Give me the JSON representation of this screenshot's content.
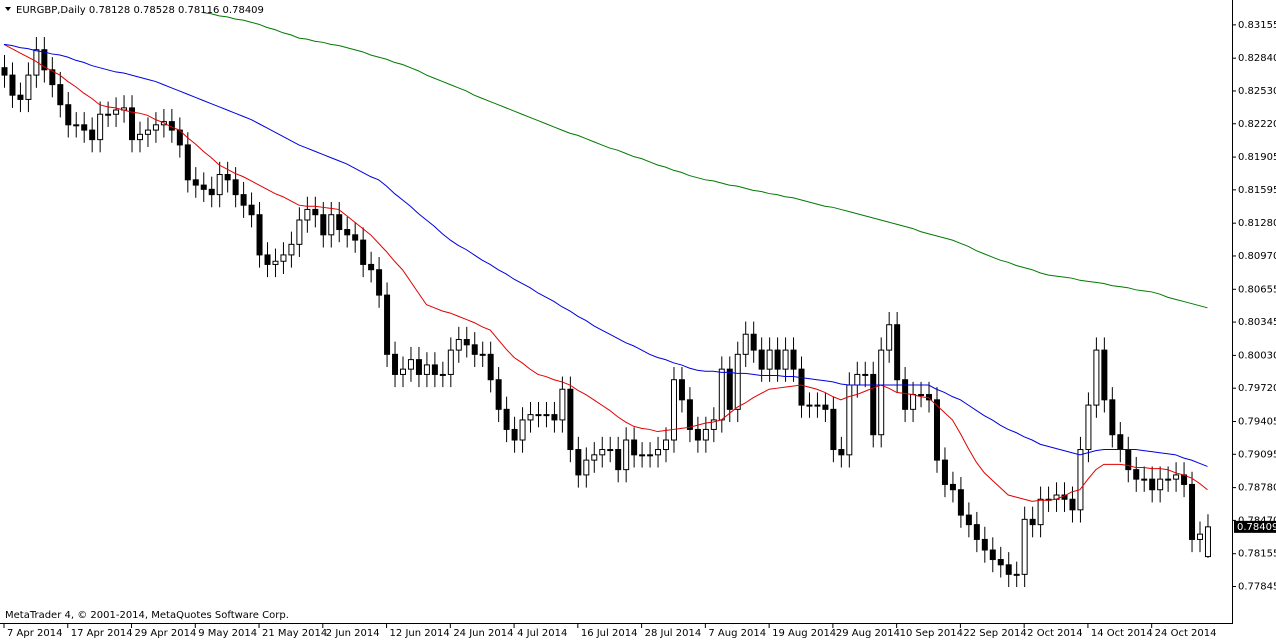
{
  "chart_data": {
    "type": "candlestick",
    "title": "EURGBP,Daily",
    "footer": "MetaTrader 4, © 2001-2014, MetaQuotes Software Corp.",
    "up_color": "#ffffff",
    "down_color": "#000000",
    "edge_color": "#000000",
    "categories": [
      "7 Apr 2014",
      null,
      null,
      null,
      null,
      null,
      null,
      null,
      "17 Apr 2014",
      null,
      null,
      null,
      null,
      null,
      null,
      null,
      "29 Apr 2014",
      null,
      null,
      null,
      null,
      null,
      null,
      null,
      "9 May 2014",
      null,
      null,
      null,
      null,
      null,
      null,
      null,
      "21 May 2014",
      null,
      null,
      null,
      null,
      null,
      null,
      null,
      "2 Jun 2014",
      null,
      null,
      null,
      null,
      null,
      null,
      null,
      "12 Jun 2014",
      null,
      null,
      null,
      null,
      null,
      null,
      null,
      "24 Jun 2014",
      null,
      null,
      null,
      null,
      null,
      null,
      null,
      "4 Jul 2014",
      null,
      null,
      null,
      null,
      null,
      null,
      null,
      "16 Jul 2014",
      null,
      null,
      null,
      null,
      null,
      null,
      null,
      "28 Jul 2014",
      null,
      null,
      null,
      null,
      null,
      null,
      null,
      "7 Aug 2014",
      null,
      null,
      null,
      null,
      null,
      null,
      null,
      "19 Aug 2014",
      null,
      null,
      null,
      null,
      null,
      null,
      null,
      "29 Aug 2014",
      null,
      null,
      null,
      null,
      null,
      null,
      null,
      "10 Sep 2014",
      null,
      null,
      null,
      null,
      null,
      null,
      null,
      "22 Sep 2014",
      null,
      null,
      null,
      null,
      null,
      null,
      null,
      "2 Oct 2014",
      null,
      null,
      null,
      null,
      null,
      null,
      null,
      "14 Oct 2014",
      null,
      null,
      null,
      null,
      null,
      null,
      null,
      "24 Oct 2014",
      null,
      null,
      null,
      null,
      null,
      null,
      null
    ],
    "open": [
      0.8275,
      0.8268,
      0.8249,
      0.8245,
      0.8268,
      0.8292,
      0.8273,
      0.8259,
      0.824,
      0.8221,
      0.8221,
      0.8216,
      0.8207,
      0.8231,
      0.8231,
      0.8235,
      0.8237,
      0.8207,
      0.8212,
      0.8216,
      0.8221,
      0.8224,
      0.8216,
      0.8202,
      0.8169,
      0.8164,
      0.816,
      0.8155,
      0.8174,
      0.8169,
      0.8155,
      0.8145,
      0.8136,
      0.8098,
      0.8089,
      0.8092,
      0.8098,
      0.8108,
      0.8131,
      0.8141,
      0.8136,
      0.8117,
      0.8136,
      0.8122,
      0.8117,
      0.8112,
      0.8089,
      0.8084,
      0.806,
      0.8004,
      0.7985,
      0.799,
      0.7999,
      0.7985,
      0.7994,
      0.7985,
      0.7985,
      0.8008,
      0.8018,
      0.8013,
      0.8004,
      0.8004,
      0.798,
      0.7952,
      0.7933,
      0.7923,
      0.7942,
      0.7947,
      0.7947,
      0.7947,
      0.7942,
      0.7971,
      0.7914,
      0.789,
      0.7904,
      0.7909,
      0.7914,
      0.7914,
      0.7895,
      0.7923,
      0.7909,
      0.7909,
      0.7909,
      0.7914,
      0.7923,
      0.798,
      0.7961,
      0.7933,
      0.7923,
      0.7933,
      0.7942,
      0.799,
      0.7952,
      0.8004,
      0.8023,
      0.8008,
      0.799,
      0.8008,
      0.799,
      0.8008,
      0.799,
      0.7956,
      0.7956,
      0.7956,
      0.7952,
      0.7914,
      0.7909,
      0.7975,
      0.7985,
      0.7985,
      0.7928,
      0.8008,
      0.8032,
      0.798,
      0.7952,
      0.7966,
      0.7966,
      0.7961,
      0.7904,
      0.7881,
      0.7876,
      0.7852,
      0.7843,
      0.7829,
      0.7819,
      0.781,
      0.7805,
      0.7796,
      0.7796,
      0.7848,
      0.7843,
      0.7867,
      0.7867,
      0.7871,
      0.7867,
      0.7857,
      0.7914,
      0.7956,
      0.8008,
      0.7961,
      0.7928,
      0.7914,
      0.7895,
      0.7886,
      0.7886,
      0.7876,
      0.7886,
      0.7886,
      0.789,
      0.7881,
      0.7829,
      0.78128
    ],
    "high": [
      0.8287,
      0.828,
      0.8261,
      0.828,
      0.8304,
      0.8304,
      0.8285,
      0.8271,
      0.8252,
      0.8233,
      0.8233,
      0.8228,
      0.8243,
      0.8243,
      0.8247,
      0.8249,
      0.8249,
      0.8224,
      0.8228,
      0.8233,
      0.8236,
      0.8236,
      0.8228,
      0.8214,
      0.8181,
      0.8176,
      0.8172,
      0.8186,
      0.8186,
      0.8181,
      0.8167,
      0.8157,
      0.8148,
      0.811,
      0.8104,
      0.811,
      0.812,
      0.8143,
      0.8153,
      0.8153,
      0.8148,
      0.8148,
      0.8148,
      0.8134,
      0.8129,
      0.8124,
      0.8101,
      0.8096,
      0.8072,
      0.8016,
      0.8002,
      0.8011,
      0.8011,
      0.8006,
      0.8006,
      0.7997,
      0.802,
      0.803,
      0.803,
      0.8025,
      0.8016,
      0.8016,
      0.7992,
      0.7964,
      0.7945,
      0.7954,
      0.7959,
      0.7959,
      0.7959,
      0.7959,
      0.7983,
      0.7983,
      0.7926,
      0.7916,
      0.7921,
      0.7926,
      0.7926,
      0.7926,
      0.7935,
      0.7935,
      0.7921,
      0.7921,
      0.7926,
      0.7935,
      0.7992,
      0.7992,
      0.7973,
      0.7945,
      0.7945,
      0.7954,
      0.8002,
      0.8002,
      0.8016,
      0.8035,
      0.8035,
      0.802,
      0.802,
      0.802,
      0.802,
      0.802,
      0.8002,
      0.7968,
      0.7968,
      0.7968,
      0.7964,
      0.7926,
      0.7987,
      0.7997,
      0.7997,
      0.7997,
      0.802,
      0.8044,
      0.8044,
      0.7992,
      0.7978,
      0.7978,
      0.7978,
      0.7973,
      0.7916,
      0.7893,
      0.7888,
      0.7864,
      0.7855,
      0.7841,
      0.7831,
      0.7822,
      0.7817,
      0.7808,
      0.786,
      0.786,
      0.7879,
      0.7879,
      0.7883,
      0.7883,
      0.7879,
      0.7926,
      0.7968,
      0.802,
      0.802,
      0.7973,
      0.794,
      0.7926,
      0.7907,
      0.7898,
      0.7898,
      0.7898,
      0.7898,
      0.7902,
      0.7902,
      0.7893,
      0.7846,
      0.78528
    ],
    "low": [
      0.8256,
      0.8237,
      0.8233,
      0.8233,
      0.8256,
      0.8261,
      0.8247,
      0.8228,
      0.8209,
      0.8209,
      0.8204,
      0.8195,
      0.8195,
      0.8219,
      0.8219,
      0.8223,
      0.8195,
      0.8195,
      0.82,
      0.8204,
      0.8209,
      0.8204,
      0.819,
      0.8157,
      0.8152,
      0.8148,
      0.8143,
      0.8143,
      0.8157,
      0.8143,
      0.8133,
      0.8124,
      0.8086,
      0.8077,
      0.8077,
      0.808,
      0.8086,
      0.8096,
      0.8119,
      0.8124,
      0.8105,
      0.8105,
      0.811,
      0.8105,
      0.81,
      0.8077,
      0.8072,
      0.8048,
      0.7992,
      0.7973,
      0.7973,
      0.7978,
      0.7973,
      0.7973,
      0.7973,
      0.7973,
      0.7973,
      0.7996,
      0.8001,
      0.7992,
      0.7992,
      0.7968,
      0.794,
      0.7921,
      0.7911,
      0.7911,
      0.793,
      0.7935,
      0.7935,
      0.793,
      0.793,
      0.7902,
      0.7878,
      0.7878,
      0.7892,
      0.7897,
      0.7902,
      0.7883,
      0.7883,
      0.7897,
      0.7897,
      0.7897,
      0.7897,
      0.7902,
      0.7911,
      0.7949,
      0.7921,
      0.7911,
      0.7911,
      0.7921,
      0.793,
      0.794,
      0.794,
      0.7992,
      0.7996,
      0.7978,
      0.7978,
      0.7978,
      0.7978,
      0.7978,
      0.7944,
      0.7944,
      0.7944,
      0.794,
      0.7902,
      0.7897,
      0.7897,
      0.7963,
      0.7973,
      0.7916,
      0.7916,
      0.7996,
      0.7968,
      0.794,
      0.794,
      0.7954,
      0.7949,
      0.7892,
      0.7869,
      0.7864,
      0.784,
      0.7831,
      0.7817,
      0.7807,
      0.7798,
      0.7793,
      0.7784,
      0.7784,
      0.7784,
      0.7831,
      0.7831,
      0.7855,
      0.7855,
      0.7855,
      0.7845,
      0.7845,
      0.7902,
      0.7944,
      0.7949,
      0.7916,
      0.7902,
      0.7883,
      0.7874,
      0.7874,
      0.7864,
      0.7864,
      0.7874,
      0.7874,
      0.7869,
      0.7817,
      0.7817,
      0.78116
    ],
    "close": [
      0.8268,
      0.8249,
      0.8245,
      0.8268,
      0.8292,
      0.8273,
      0.8259,
      0.824,
      0.8221,
      0.8221,
      0.8216,
      0.8207,
      0.8231,
      0.8231,
      0.8235,
      0.8237,
      0.8207,
      0.8212,
      0.8216,
      0.8221,
      0.8224,
      0.8216,
      0.8202,
      0.8169,
      0.8164,
      0.816,
      0.8155,
      0.8174,
      0.8169,
      0.8155,
      0.8145,
      0.8136,
      0.8098,
      0.8089,
      0.8092,
      0.8098,
      0.8108,
      0.8131,
      0.8141,
      0.8136,
      0.8117,
      0.8136,
      0.8122,
      0.8117,
      0.8112,
      0.8089,
      0.8084,
      0.806,
      0.8004,
      0.7985,
      0.799,
      0.7999,
      0.7985,
      0.7994,
      0.7985,
      0.7985,
      0.8008,
      0.8018,
      0.8013,
      0.8004,
      0.8004,
      0.798,
      0.7952,
      0.7933,
      0.7923,
      0.7942,
      0.7947,
      0.7947,
      0.7947,
      0.7942,
      0.7971,
      0.7914,
      0.789,
      0.7904,
      0.7909,
      0.7914,
      0.7914,
      0.7895,
      0.7923,
      0.7909,
      0.7909,
      0.7909,
      0.7914,
      0.7923,
      0.798,
      0.7961,
      0.7933,
      0.7923,
      0.7933,
      0.7942,
      0.799,
      0.7952,
      0.8004,
      0.8023,
      0.8008,
      0.799,
      0.8008,
      0.799,
      0.8008,
      0.799,
      0.7956,
      0.7956,
      0.7956,
      0.7952,
      0.7914,
      0.7909,
      0.7975,
      0.7985,
      0.7985,
      0.7928,
      0.8008,
      0.8032,
      0.798,
      0.7952,
      0.7966,
      0.7966,
      0.7961,
      0.7904,
      0.7881,
      0.7876,
      0.7852,
      0.7843,
      0.7829,
      0.7819,
      0.781,
      0.7805,
      0.7796,
      0.7796,
      0.7848,
      0.7843,
      0.7867,
      0.7867,
      0.7871,
      0.7867,
      0.7857,
      0.7914,
      0.7956,
      0.8008,
      0.7961,
      0.7928,
      0.7914,
      0.7895,
      0.7886,
      0.7886,
      0.7876,
      0.7886,
      0.7886,
      0.789,
      0.7881,
      0.7829,
      0.7834,
      0.78409
    ],
    "series": [
      {
        "color": "#e00000",
        "values": [
          0.8297,
          0.8293,
          0.8289,
          0.8285,
          0.8281,
          0.8276,
          0.8272,
          0.8268,
          0.8262,
          0.8257,
          0.8251,
          0.8246,
          0.824,
          0.8238,
          0.8237,
          0.8235,
          0.8233,
          0.8232,
          0.823,
          0.8226,
          0.8223,
          0.8219,
          0.8216,
          0.8209,
          0.8203,
          0.8196,
          0.819,
          0.8183,
          0.8179,
          0.8175,
          0.8172,
          0.8168,
          0.8164,
          0.816,
          0.8156,
          0.8153,
          0.8149,
          0.8145,
          0.8144,
          0.8144,
          0.8143,
          0.8142,
          0.8141,
          0.8135,
          0.8129,
          0.8123,
          0.8117,
          0.8109,
          0.8101,
          0.8092,
          0.8084,
          0.8073,
          0.8062,
          0.8051,
          0.8048,
          0.8045,
          0.8043,
          0.804,
          0.8037,
          0.8034,
          0.803,
          0.8027,
          0.8018,
          0.8009,
          0.8001,
          0.7996,
          0.799,
          0.7985,
          0.7983,
          0.798,
          0.7978,
          0.7975,
          0.797,
          0.7966,
          0.7961,
          0.7956,
          0.7951,
          0.7945,
          0.794,
          0.7936,
          0.7934,
          0.7933,
          0.7931,
          0.7932,
          0.7933,
          0.7934,
          0.7935,
          0.7937,
          0.7939,
          0.794,
          0.7942,
          0.7948,
          0.7954,
          0.7958,
          0.7963,
          0.7967,
          0.7971,
          0.7972,
          0.7973,
          0.7974,
          0.7975,
          0.7973,
          0.7971,
          0.7968,
          0.7964,
          0.7961,
          0.7964,
          0.7966,
          0.7969,
          0.7972,
          0.7975,
          0.7972,
          0.7968,
          0.7967,
          0.7966,
          0.7964,
          0.7963,
          0.7956,
          0.7949,
          0.7942,
          0.7929,
          0.7915,
          0.7902,
          0.7892,
          0.7885,
          0.7878,
          0.7871,
          0.7869,
          0.7867,
          0.7865,
          0.7866,
          0.7866,
          0.7867,
          0.787,
          0.7874,
          0.7876,
          0.7886,
          0.7895,
          0.79,
          0.79,
          0.79,
          0.7899,
          0.7897,
          0.7897,
          0.7896,
          0.7896,
          0.7895,
          0.7892,
          0.789,
          0.7887,
          0.7882,
          0.7876
        ]
      },
      {
        "color": "#0000e0",
        "values": [
          0.8297,
          0.8296,
          0.8294,
          0.8293,
          0.8291,
          0.829,
          0.8288,
          0.8287,
          0.8285,
          0.8282,
          0.828,
          0.8277,
          0.8275,
          0.8273,
          0.8271,
          0.827,
          0.8268,
          0.8266,
          0.8264,
          0.8262,
          0.8259,
          0.8256,
          0.8253,
          0.825,
          0.8247,
          0.8244,
          0.8241,
          0.8238,
          0.8235,
          0.8232,
          0.8229,
          0.8226,
          0.8222,
          0.8218,
          0.8214,
          0.821,
          0.8206,
          0.8202,
          0.8199,
          0.8196,
          0.8193,
          0.819,
          0.8187,
          0.8184,
          0.818,
          0.8176,
          0.8172,
          0.8169,
          0.8163,
          0.8156,
          0.815,
          0.8144,
          0.8137,
          0.8131,
          0.8125,
          0.8118,
          0.8112,
          0.8107,
          0.8103,
          0.8098,
          0.8093,
          0.8089,
          0.8084,
          0.808,
          0.8075,
          0.8071,
          0.8067,
          0.8062,
          0.8058,
          0.8054,
          0.8049,
          0.8045,
          0.804,
          0.8036,
          0.8031,
          0.8027,
          0.8023,
          0.8019,
          0.8015,
          0.8012,
          0.8008,
          0.8004,
          0.8001,
          0.7999,
          0.7996,
          0.7994,
          0.7991,
          0.7989,
          0.7988,
          0.7988,
          0.7987,
          0.7987,
          0.7986,
          0.7986,
          0.7985,
          0.7984,
          0.7984,
          0.7984,
          0.7983,
          0.7983,
          0.7982,
          0.7981,
          0.798,
          0.7979,
          0.7978,
          0.7976,
          0.7975,
          0.7975,
          0.7975,
          0.7975,
          0.7975,
          0.7975,
          0.7975,
          0.7975,
          0.7975,
          0.7975,
          0.7975,
          0.7971,
          0.7968,
          0.7964,
          0.7961,
          0.7956,
          0.7951,
          0.7946,
          0.7942,
          0.7937,
          0.7933,
          0.793,
          0.7926,
          0.7923,
          0.7919,
          0.7917,
          0.7915,
          0.7913,
          0.7911,
          0.7909,
          0.7911,
          0.7913,
          0.7914,
          0.7914,
          0.7914,
          0.7914,
          0.7914,
          0.7913,
          0.7912,
          0.7911,
          0.791,
          0.7909,
          0.7906,
          0.7904,
          0.7901,
          0.7898
        ]
      },
      {
        "color": "#007a00",
        "values": [
          null,
          null,
          null,
          null,
          null,
          null,
          null,
          null,
          null,
          null,
          null,
          null,
          null,
          null,
          null,
          null,
          null,
          null,
          null,
          null,
          null,
          null,
          null,
          null,
          null,
          0.8327,
          0.8326,
          0.8324,
          0.8323,
          0.8321,
          0.832,
          0.8318,
          0.8316,
          0.8313,
          0.8311,
          0.8308,
          0.8306,
          0.8303,
          0.8302,
          0.83,
          0.8299,
          0.8297,
          0.8296,
          0.8294,
          0.8292,
          0.829,
          0.8287,
          0.8285,
          0.8283,
          0.828,
          0.8278,
          0.8275,
          0.8272,
          0.8268,
          0.8265,
          0.8262,
          0.8259,
          0.8256,
          0.8253,
          0.8249,
          0.8246,
          0.8243,
          0.824,
          0.8237,
          0.8234,
          0.8231,
          0.8228,
          0.8225,
          0.8222,
          0.8219,
          0.8216,
          0.8213,
          0.8211,
          0.8208,
          0.8205,
          0.8202,
          0.8199,
          0.8197,
          0.8194,
          0.8191,
          0.8189,
          0.8186,
          0.8183,
          0.8181,
          0.8178,
          0.8176,
          0.8173,
          0.8171,
          0.8169,
          0.8168,
          0.8166,
          0.8164,
          0.8163,
          0.8161,
          0.8159,
          0.8158,
          0.8156,
          0.8155,
          0.8153,
          0.8152,
          0.815,
          0.8148,
          0.8146,
          0.8144,
          0.8143,
          0.8141,
          0.8139,
          0.8137,
          0.8135,
          0.8133,
          0.8131,
          0.8129,
          0.8127,
          0.8125,
          0.8123,
          0.812,
          0.8118,
          0.8116,
          0.8114,
          0.8112,
          0.8109,
          0.8106,
          0.8102,
          0.8099,
          0.8096,
          0.8093,
          0.8091,
          0.8088,
          0.8086,
          0.8084,
          0.8081,
          0.8079,
          0.8078,
          0.8077,
          0.8076,
          0.8074,
          0.8073,
          0.8072,
          0.8071,
          0.8069,
          0.8068,
          0.8067,
          0.8065,
          0.8064,
          0.8063,
          0.8061,
          0.8058,
          0.8056,
          0.8054,
          0.8052,
          0.805,
          0.8048
        ]
      }
    ],
    "ylim": [
      0.775,
      0.8339
    ],
    "yticks": [
      0.83155,
      {
        "value": 0.8284,
        "label": "0.82840"
      },
      {
        "value": 0.8253,
        "label": "0.82530"
      },
      {
        "value": 0.8222,
        "label": "0.82220"
      },
      0.81905,
      0.81595,
      {
        "value": 0.8128,
        "label": "0.81280"
      },
      {
        "value": 0.8097,
        "label": "0.80970"
      },
      0.80655,
      0.80345,
      {
        "value": 0.8003,
        "label": "0.80030"
      },
      {
        "value": 0.7972,
        "label": "0.79720"
      },
      0.79405,
      0.79095,
      {
        "value": 0.7878,
        "label": "0.78780"
      },
      {
        "value": 0.7847,
        "label": "0.78470"
      },
      0.78155,
      0.77845
    ]
  }
}
